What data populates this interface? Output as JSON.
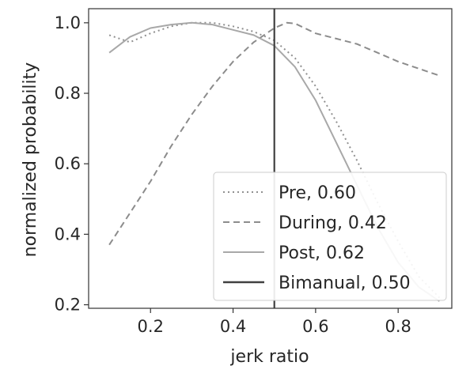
{
  "chart_data": {
    "type": "line",
    "title": "",
    "xlabel": "jerk ratio",
    "ylabel": "normalized probability",
    "xlim": [
      0.05,
      0.93
    ],
    "ylim": [
      0.19,
      1.04
    ],
    "xticks": [
      0.2,
      0.4,
      0.6,
      0.8
    ],
    "xtick_labels": [
      "0.2",
      "0.4",
      "0.6",
      "0.8"
    ],
    "yticks": [
      0.2,
      0.4,
      0.6,
      0.8,
      1.0
    ],
    "ytick_labels": [
      "0.2",
      "0.4",
      "0.6",
      "0.8",
      "1.0"
    ],
    "grid": false,
    "legend_position": "bottom-right",
    "series": [
      {
        "name": "Pre, 0.60",
        "style": "dotted",
        "color": "#909090",
        "x": [
          0.1,
          0.15,
          0.2,
          0.25,
          0.3,
          0.35,
          0.4,
          0.45,
          0.5,
          0.55,
          0.6,
          0.65,
          0.7,
          0.75,
          0.8,
          0.85,
          0.9
        ],
        "y": [
          0.965,
          0.945,
          0.97,
          0.99,
          1.0,
          1.0,
          0.99,
          0.975,
          0.95,
          0.9,
          0.82,
          0.72,
          0.61,
          0.49,
          0.38,
          0.28,
          0.22
        ]
      },
      {
        "name": "During, 0.42",
        "style": "dashed",
        "color": "#8c8c8c",
        "x": [
          0.1,
          0.15,
          0.2,
          0.25,
          0.3,
          0.35,
          0.4,
          0.45,
          0.5,
          0.53,
          0.55,
          0.6,
          0.65,
          0.7,
          0.75,
          0.8,
          0.85,
          0.9
        ],
        "y": [
          0.37,
          0.46,
          0.55,
          0.65,
          0.74,
          0.82,
          0.89,
          0.945,
          0.985,
          1.0,
          0.998,
          0.97,
          0.955,
          0.94,
          0.915,
          0.89,
          0.87,
          0.85
        ]
      },
      {
        "name": "Post, 0.62",
        "style": "solid",
        "color": "#a8a8a8",
        "x": [
          0.1,
          0.15,
          0.2,
          0.25,
          0.3,
          0.35,
          0.4,
          0.45,
          0.5,
          0.55,
          0.6,
          0.65,
          0.7,
          0.75,
          0.8,
          0.85,
          0.9
        ],
        "y": [
          0.915,
          0.96,
          0.985,
          0.995,
          1.0,
          0.995,
          0.98,
          0.965,
          0.935,
          0.875,
          0.78,
          0.66,
          0.54,
          0.42,
          0.32,
          0.25,
          0.21
        ]
      }
    ],
    "vlines": [
      {
        "name": "Bimanual, 0.50",
        "x": 0.5,
        "style": "solid",
        "color": "#404040"
      }
    ]
  }
}
